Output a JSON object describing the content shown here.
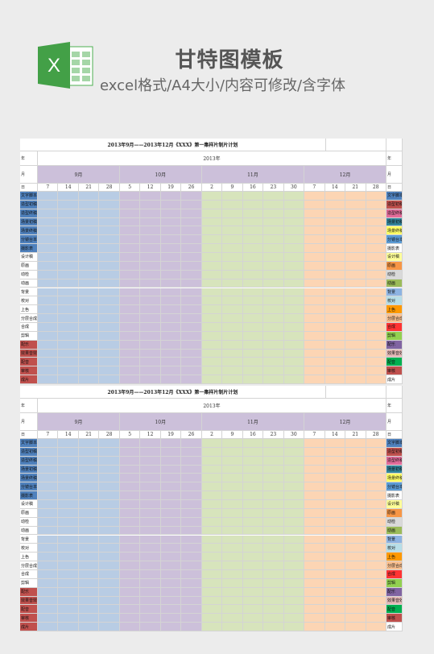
{
  "header": {
    "title": "甘特图模板",
    "subtitle": "excel格式/A4大小/内容可修改/含字体",
    "logo_letter": "X"
  },
  "sheet": {
    "title": "2013年9月——2013年12月《XXX》第一集样片制片计划",
    "row_labels": {
      "year": "年",
      "month": "月",
      "day": "日"
    },
    "year_value": "2013年",
    "months": [
      {
        "label": "9月",
        "days": [
          "7",
          "14",
          "21",
          "28"
        ],
        "header_color": "#ccc0da",
        "cell_color": "#b8cce4"
      },
      {
        "label": "10月",
        "days": [
          "5",
          "12",
          "19",
          "26"
        ],
        "header_color": "#ccc0da",
        "cell_color": "#ccc0da"
      },
      {
        "label": "11月",
        "days": [
          "2",
          "9",
          "16",
          "23",
          "30"
        ],
        "header_color": "#ccc0da",
        "cell_color": "#d7e4bc"
      },
      {
        "label": "12月",
        "days": [
          "7",
          "14",
          "21",
          "28"
        ],
        "header_color": "#ccc0da",
        "cell_color": "#fcd5b4"
      }
    ],
    "tasks": [
      {
        "name": "文字脚本",
        "left_color": "#4f81bd",
        "right_color": "#4f81bd"
      },
      {
        "name": "造型初稿",
        "left_color": "#4f81bd",
        "right_color": "#c0504d"
      },
      {
        "name": "造型终稿",
        "left_color": "#4f81bd",
        "right_color": "#e36c9a"
      },
      {
        "name": "场景初稿",
        "left_color": "#4f81bd",
        "right_color": "#31859c"
      },
      {
        "name": "场景终稿",
        "left_color": "#4f81bd",
        "right_color": "#ffff66"
      },
      {
        "name": "分镜台本",
        "left_color": "#4f81bd",
        "right_color": "#5b9bd5"
      },
      {
        "name": "摄影表",
        "left_color": "#4f81bd",
        "right_color": "#ffffff"
      },
      {
        "name": "设计稿",
        "left_color": "#ffffff",
        "right_color": "#ffff99"
      },
      {
        "name": "原画",
        "left_color": "#ffffff",
        "right_color": "#f79646"
      },
      {
        "name": "动检",
        "left_color": "#ffffff",
        "right_color": "#d9d9d9"
      },
      {
        "name": "动画",
        "left_color": "#ffffff",
        "right_color": "#9bbb59"
      },
      {
        "name": "背景",
        "left_color": "#ffffff",
        "right_color": "#8db3e2"
      },
      {
        "name": "校对",
        "left_color": "#ffffff",
        "right_color": "#b7dee8"
      },
      {
        "name": "上色",
        "left_color": "#ffffff",
        "right_color": "#ff9900"
      },
      {
        "name": "分层合成",
        "left_color": "#ffffff",
        "right_color": "#fac090"
      },
      {
        "name": "合成",
        "left_color": "#ffffff",
        "right_color": "#ff3333"
      },
      {
        "name": "剪辑",
        "left_color": "#ffffff",
        "right_color": "#92d050"
      },
      {
        "name": "配乐",
        "left_color": "#c0504d",
        "right_color": "#8064a2"
      },
      {
        "name": "效果音效",
        "left_color": "#c0504d",
        "right_color": "#e6b9b8"
      },
      {
        "name": "配音",
        "left_color": "#c0504d",
        "right_color": "#00b050"
      },
      {
        "name": "审核",
        "left_color": "#c0504d",
        "right_color": "#c0504d"
      },
      {
        "name": "成片",
        "left_color": "#c0504d",
        "right_color": "#ffffff"
      }
    ]
  }
}
